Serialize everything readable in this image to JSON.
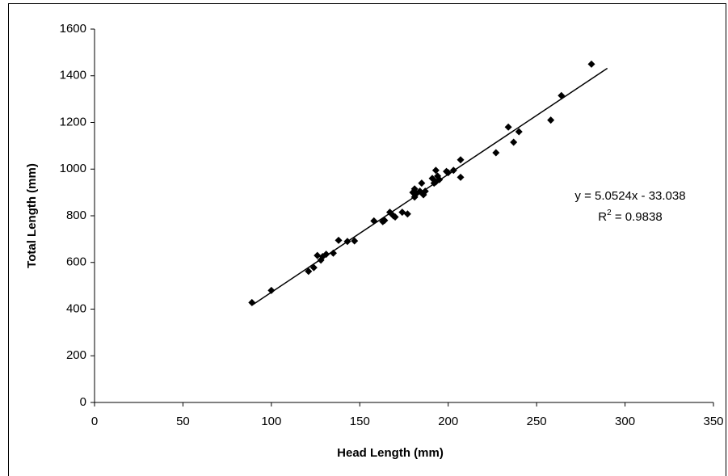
{
  "chart_data": {
    "type": "scatter",
    "x_label": "Head Length (mm)",
    "y_label": "Total Length (mm)",
    "color": "#000000",
    "x": [
      89,
      100,
      121,
      124,
      126,
      128,
      129,
      131,
      135,
      138,
      143,
      147,
      158,
      163,
      164,
      167,
      169,
      170,
      174,
      177,
      180,
      181,
      181,
      182,
      184,
      185,
      186,
      187,
      191,
      192,
      193,
      193,
      194,
      195,
      199,
      200,
      203,
      207,
      207,
      227,
      234,
      237,
      240,
      258,
      264,
      281
    ],
    "values": [
      428,
      480,
      562,
      578,
      630,
      610,
      625,
      635,
      640,
      695,
      690,
      692,
      778,
      775,
      780,
      815,
      800,
      795,
      815,
      808,
      900,
      915,
      880,
      895,
      905,
      940,
      890,
      905,
      960,
      940,
      995,
      945,
      970,
      955,
      990,
      985,
      995,
      1040,
      965,
      1070,
      1180,
      1115,
      1160,
      1210,
      1315,
      1450
    ],
    "xlim": [
      0,
      350
    ],
    "xticks": [
      0,
      50,
      100,
      150,
      200,
      250,
      300,
      350
    ],
    "ylim": [
      0,
      1600
    ],
    "yticks": [
      0,
      200,
      400,
      600,
      800,
      1000,
      1200,
      1400,
      1600
    ],
    "grid": false,
    "trendline": {
      "slope": 5.0524,
      "intercept": -33.038,
      "x_range": [
        89,
        290
      ],
      "equation": "y = 5.0524x - 33.038",
      "r2_base": "R",
      "r2_sup": "2",
      "r2_rest": " = 0.9838"
    }
  }
}
